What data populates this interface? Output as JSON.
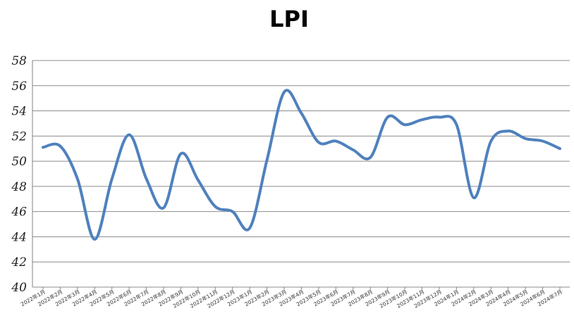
{
  "chart_data": {
    "type": "line",
    "title": "LPI",
    "xlabel": "",
    "ylabel": "",
    "ylim": [
      40,
      58
    ],
    "yticks": [
      "40",
      "42",
      "44",
      "46",
      "48",
      "50",
      "52",
      "54",
      "56",
      "58"
    ],
    "grid": true,
    "legend": "none",
    "line_color": "#4f81bd",
    "categories": [
      "2022年1月",
      "2022年2月",
      "2022年3月",
      "2022年4月",
      "2022年5月",
      "2022年6月",
      "2022年7月",
      "2022年8月",
      "2022年9月",
      "2022年10月",
      "2022年11月",
      "2022年12月",
      "2023年1月",
      "2023年2月",
      "2023年3月",
      "2023年4月",
      "2023年5月",
      "2023年6月",
      "2023年7月",
      "2023年8月",
      "2023年9月",
      "2023年10月",
      "2023年11月",
      "2023年12月",
      "2024年1月",
      "2024年2月",
      "2024年3月",
      "2024年4月",
      "2024年5月",
      "2024年6月",
      "2024年7月"
    ],
    "series": [
      {
        "name": "",
        "values": [
          51.1,
          51.2,
          48.6,
          43.8,
          48.6,
          52.1,
          48.6,
          46.3,
          50.6,
          48.5,
          46.4,
          46.0,
          44.7,
          50.1,
          55.5,
          53.8,
          51.5,
          51.6,
          50.9,
          50.3,
          53.5,
          52.9,
          53.3,
          53.5,
          52.9,
          47.1,
          51.6,
          52.4,
          51.8,
          51.6,
          51.0
        ]
      }
    ]
  }
}
